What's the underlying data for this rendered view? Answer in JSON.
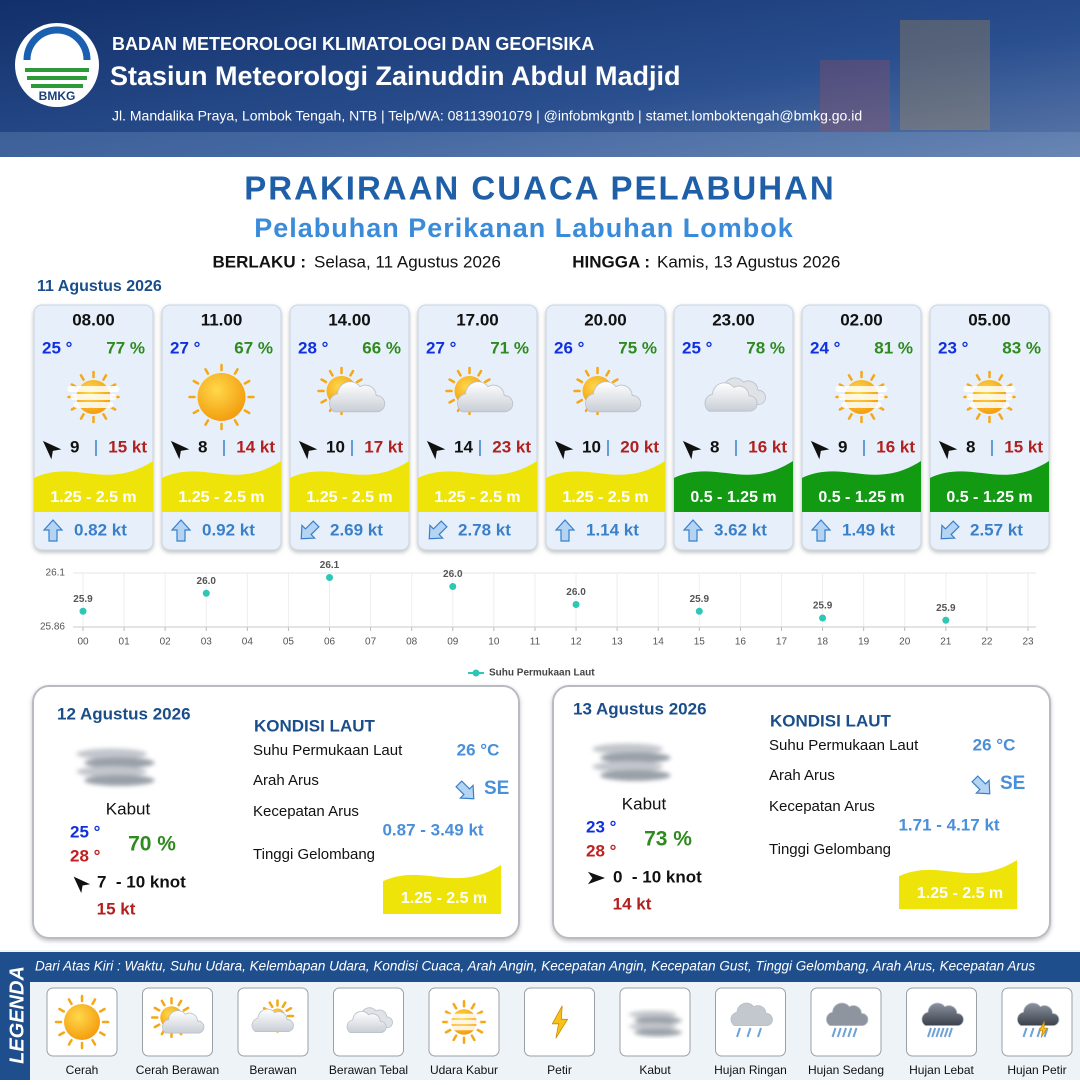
{
  "header": {
    "logo_text": "BMKG",
    "org": "BADAN METEOROLOGI KLIMATOLOGI DAN GEOFISIKA",
    "station": "Stasiun Meteorologi Zainuddin Abdul Madjid",
    "address": "Jl. Mandalika Praya, Lombok Tengah, NTB | Telp/WA: 08113901079 | @infobmkgntb | stamet.lomboktengah@bmkg.go.id"
  },
  "title": "PRAKIRAAN CUACA PELABUHAN",
  "subtitle": "Pelabuhan Perikanan Labuhan Lombok",
  "validity": {
    "from_label": "BERLAKU :",
    "from": "Selasa, 11 Agustus 2026",
    "to_label": "HINGGA :",
    "to": "Kamis, 13 Agustus 2026"
  },
  "day1": {
    "date": "11 Agustus 2026",
    "forecasts": [
      {
        "time": "08.00",
        "temp": "25 °",
        "humidity": "77 %",
        "icon": "Udara Kabur",
        "wind_arrow_deg": 315,
        "wind": "9",
        "gust": "15 kt",
        "wave": "1.25 - 2.5 m",
        "wave_color": "#efe40a",
        "current_arrow_deg": 0,
        "current": "0.82 kt"
      },
      {
        "time": "11.00",
        "temp": "27 °",
        "humidity": "67 %",
        "icon": "Cerah",
        "wind_arrow_deg": 315,
        "wind": "8",
        "gust": "14 kt",
        "wave": "1.25 - 2.5 m",
        "wave_color": "#efe40a",
        "current_arrow_deg": 0,
        "current": "0.92 kt"
      },
      {
        "time": "14.00",
        "temp": "28 °",
        "humidity": "66 %",
        "icon": "Cerah Berawan",
        "wind_arrow_deg": 315,
        "wind": "10",
        "gust": "17 kt",
        "wave": "1.25 - 2.5 m",
        "wave_color": "#efe40a",
        "current_arrow_deg": 225,
        "current": "2.69 kt"
      },
      {
        "time": "17.00",
        "temp": "27 °",
        "humidity": "71 %",
        "icon": "Cerah Berawan",
        "wind_arrow_deg": 315,
        "wind": "14",
        "gust": "23 kt",
        "wave": "1.25 - 2.5 m",
        "wave_color": "#efe40a",
        "current_arrow_deg": 225,
        "current": "2.78 kt"
      },
      {
        "time": "20.00",
        "temp": "26 °",
        "humidity": "75 %",
        "icon": "Cerah Berawan",
        "wind_arrow_deg": 315,
        "wind": "10",
        "gust": "20 kt",
        "wave": "1.25 - 2.5 m",
        "wave_color": "#efe40a",
        "current_arrow_deg": 0,
        "current": "1.14 kt"
      },
      {
        "time": "23.00",
        "temp": "25 °",
        "humidity": "78 %",
        "icon": "Berawan Tebal",
        "wind_arrow_deg": 315,
        "wind": "8",
        "gust": "16 kt",
        "wave": "0.5 - 1.25 m",
        "wave_color": "#129a12",
        "current_arrow_deg": 0,
        "current": "3.62 kt"
      },
      {
        "time": "02.00",
        "temp": "24 °",
        "humidity": "81 %",
        "icon": "Udara Kabur",
        "wind_arrow_deg": 315,
        "wind": "9",
        "gust": "16 kt",
        "wave": "0.5 - 1.25 m",
        "wave_color": "#129a12",
        "current_arrow_deg": 0,
        "current": "1.49 kt"
      },
      {
        "time": "05.00",
        "temp": "23 °",
        "humidity": "83 %",
        "icon": "Udara Kabur",
        "wind_arrow_deg": 315,
        "wind": "8",
        "gust": "15 kt",
        "wave": "0.5 - 1.25 m",
        "wave_color": "#129a12",
        "current_arrow_deg": 225,
        "current": "2.57 kt"
      }
    ]
  },
  "chart_data": {
    "type": "line",
    "x": [
      0,
      3,
      6,
      9,
      12,
      15,
      18,
      21
    ],
    "series": [
      {
        "name": "Suhu Permukaan Laut",
        "color": "#2cc7b5",
        "values": [
          25.93,
          26.01,
          26.08,
          26.04,
          25.96,
          25.93,
          25.9,
          25.89
        ],
        "value_labels": [
          "25.9",
          "26.0",
          "26.1",
          "26.0",
          "26.0",
          "25.9",
          "25.9",
          "25.9"
        ]
      }
    ],
    "xlim": [
      0,
      23
    ],
    "xticks": [
      {
        "value": 0,
        "label": "00"
      },
      {
        "value": 1,
        "label": "01"
      },
      {
        "value": 2,
        "label": "02"
      },
      {
        "value": 3,
        "label": "03"
      },
      {
        "value": 4,
        "label": "04"
      },
      {
        "value": 5,
        "label": "05"
      },
      {
        "value": 6,
        "label": "06"
      },
      {
        "value": 7,
        "label": "07"
      },
      {
        "value": 8,
        "label": "08"
      },
      {
        "value": 9,
        "label": "09"
      },
      10,
      11,
      12,
      13,
      14,
      15,
      16,
      17,
      18,
      19,
      20,
      21,
      22,
      23
    ],
    "ylim": [
      25.86,
      26.1
    ],
    "yticks": [
      25.86,
      26.1
    ],
    "grid": true
  },
  "outlook": [
    {
      "date": "12 Agustus 2026",
      "icon": "Kabut",
      "condition": "Kabut",
      "temp_min": "25 °",
      "temp_max": "28 °",
      "humidity": "70 %",
      "wind_arrow_deg": 315,
      "wind": "7  - 10 knot",
      "gust": "15 kt",
      "sea_title": "KONDISI LAUT",
      "sea_labels": [
        "Suhu Permukaan Laut",
        "Arah Arus",
        "Kecepatan Arus",
        "Tinggi Gelombang"
      ],
      "sst": "26 °C",
      "current_arrow_deg": 135,
      "current_dir": "SE",
      "current_speed": "0.87 - 3.49 kt",
      "wave": "1.25 - 2.5 m",
      "wave_color": "#efe40a"
    },
    {
      "date": "13 Agustus 2026",
      "icon": "Kabut",
      "condition": "Kabut",
      "temp_min": "23 °",
      "temp_max": "28 °",
      "humidity": "73 %",
      "wind_arrow_deg": 90,
      "wind": "0  - 10 knot",
      "gust": "14 kt",
      "sea_title": "KONDISI LAUT",
      "sea_labels": [
        "Suhu Permukaan Laut",
        "Arah Arus",
        "Kecepatan Arus",
        "Tinggi Gelombang"
      ],
      "sst": "26 °C",
      "current_arrow_deg": 135,
      "current_dir": "SE",
      "current_speed": "1.71 - 4.17 kt",
      "wave": "1.25 - 2.5 m",
      "wave_color": "#efe40a"
    }
  ],
  "legend": {
    "title": "LEGENDA",
    "description": "Dari Atas Kiri : Waktu, Suhu Udara, Kelembapan Udara, Kondisi Cuaca, Arah Angin, Kecepatan Angin, Kecepatan Gust, Tinggi Gelombang, Arah Arus, Kecepatan Arus",
    "items": [
      "Cerah",
      "Cerah Berawan",
      "Berawan",
      "Berawan Tebal",
      "Udara Kabur",
      "Petir",
      "Kabut",
      "Hujan Ringan",
      "Hujan Sedang",
      "Hujan Lebat",
      "Hujan Petir"
    ]
  }
}
